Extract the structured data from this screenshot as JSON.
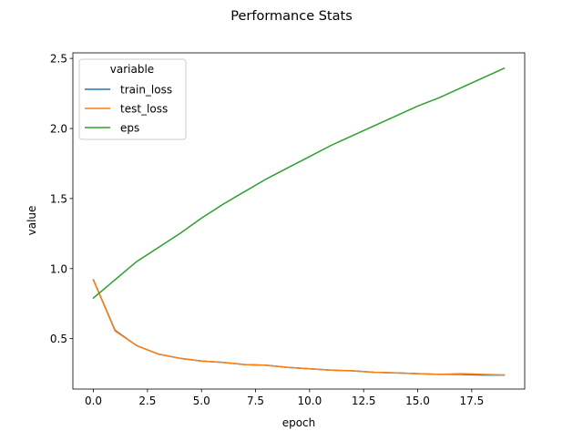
{
  "chart_data": {
    "type": "line",
    "title": "Performance Stats",
    "xlabel": "epoch",
    "ylabel": "value",
    "xlim": [
      -0.95,
      19.95
    ],
    "ylim": [
      0.14,
      2.54
    ],
    "xticks": [
      0,
      2.5,
      5,
      7.5,
      10,
      12.5,
      15,
      17.5
    ],
    "xtick_labels": [
      "0.0",
      "2.5",
      "5.0",
      "7.5",
      "10.0",
      "12.5",
      "15.0",
      "17.5"
    ],
    "yticks": [
      0.5,
      1.0,
      1.5,
      2.0,
      2.5
    ],
    "ytick_labels": [
      "0.5",
      "1.0",
      "1.5",
      "2.0",
      "2.5"
    ],
    "grid": false,
    "legend": {
      "title": "variable",
      "placement": "top-left"
    },
    "x": [
      0,
      1,
      2,
      3,
      4,
      5,
      6,
      7,
      8,
      9,
      10,
      11,
      12,
      13,
      14,
      15,
      16,
      17,
      18,
      19
    ],
    "series": [
      {
        "name": "train_loss",
        "color": "#1f77b4",
        "values": [
          0.92,
          0.56,
          0.45,
          0.39,
          0.36,
          0.34,
          0.33,
          0.315,
          0.31,
          0.295,
          0.285,
          0.275,
          0.27,
          0.26,
          0.255,
          0.25,
          0.245,
          0.245,
          0.24,
          0.24
        ]
      },
      {
        "name": "test_loss",
        "color": "#ff7f0e",
        "values": [
          0.92,
          0.555,
          0.45,
          0.39,
          0.36,
          0.34,
          0.33,
          0.315,
          0.31,
          0.295,
          0.285,
          0.275,
          0.27,
          0.26,
          0.255,
          0.25,
          0.245,
          0.25,
          0.245,
          0.24
        ]
      },
      {
        "name": "eps",
        "color": "#2ca02c",
        "values": [
          0.79,
          0.92,
          1.05,
          1.15,
          1.25,
          1.36,
          1.46,
          1.55,
          1.64,
          1.72,
          1.8,
          1.88,
          1.95,
          2.02,
          2.09,
          2.16,
          2.22,
          2.29,
          2.36,
          2.43
        ]
      }
    ]
  }
}
